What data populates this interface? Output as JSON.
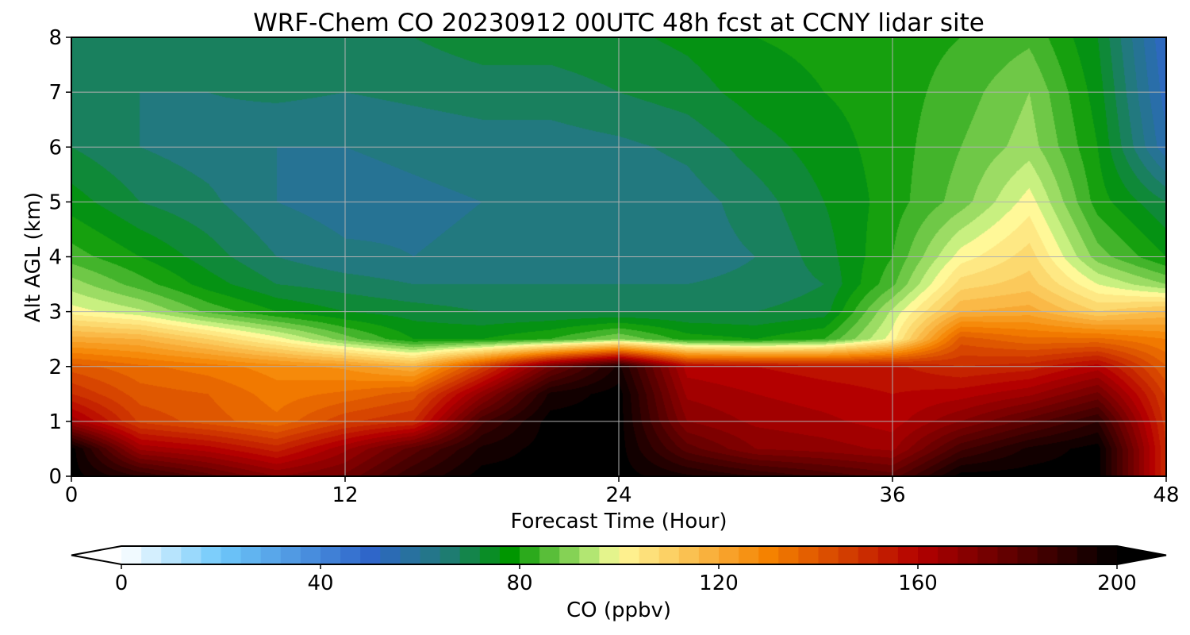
{
  "chart_data": {
    "type": "heatmap",
    "title": "WRF-Chem CO  20230912 00UTC 48h fcst at CCNY lidar site",
    "xlabel": "Forecast Time (Hour)",
    "ylabel": "Alt AGL (km)",
    "xlim": [
      0,
      48
    ],
    "ylim": [
      0,
      8
    ],
    "xticks": [
      0,
      12,
      24,
      36,
      48
    ],
    "yticks": [
      0,
      1,
      2,
      3,
      4,
      5,
      6,
      7,
      8
    ],
    "grid": true,
    "colorbar": {
      "label": "CO  (ppbv)",
      "range": [
        0,
        200
      ],
      "ticks": [
        0,
        40,
        80,
        120,
        160,
        200
      ],
      "extend": "both",
      "stops": [
        {
          "value": 0,
          "color": "#ffffff"
        },
        {
          "value": 20,
          "color": "#6ec8fa"
        },
        {
          "value": 50,
          "color": "#2f66c9"
        },
        {
          "value": 65,
          "color": "#217a7a"
        },
        {
          "value": 78,
          "color": "#009600"
        },
        {
          "value": 96,
          "color": "#c8f080"
        },
        {
          "value": 100,
          "color": "#fff898"
        },
        {
          "value": 130,
          "color": "#f58200"
        },
        {
          "value": 160,
          "color": "#b40000"
        },
        {
          "value": 200,
          "color": "#000000"
        }
      ]
    },
    "times": [
      0,
      3,
      6,
      9,
      12,
      15,
      18,
      21,
      24,
      27,
      30,
      33,
      36,
      39,
      42,
      45,
      48
    ],
    "altitudes": [
      0,
      0.5,
      1,
      1.5,
      2,
      2.5,
      3,
      3.5,
      4,
      5,
      6,
      7,
      8
    ],
    "values": [
      [
        200,
        190,
        180,
        170,
        175,
        190,
        200,
        200,
        200,
        195,
        190,
        185,
        180,
        200,
        200,
        200,
        150
      ],
      [
        200,
        165,
        160,
        152,
        165,
        180,
        195,
        200,
        200,
        180,
        170,
        168,
        165,
        185,
        195,
        200,
        150
      ],
      [
        165,
        145,
        140,
        135,
        145,
        150,
        185,
        200,
        200,
        170,
        165,
        163,
        160,
        170,
        180,
        190,
        148
      ],
      [
        150,
        140,
        138,
        132,
        135,
        140,
        168,
        195,
        200,
        165,
        162,
        160,
        158,
        160,
        165,
        175,
        145
      ],
      [
        140,
        135,
        132,
        128,
        125,
        118,
        145,
        175,
        195,
        160,
        158,
        156,
        155,
        150,
        152,
        160,
        138
      ],
      [
        120,
        118,
        110,
        100,
        88,
        78,
        78,
        82,
        90,
        80,
        78,
        82,
        100,
        140,
        135,
        135,
        130
      ],
      [
        100,
        95,
        85,
        78,
        74,
        72,
        70,
        70,
        70,
        70,
        70,
        72,
        95,
        118,
        120,
        110,
        115
      ],
      [
        92,
        84,
        76,
        70,
        68,
        66,
        66,
        66,
        66,
        66,
        67,
        70,
        85,
        108,
        112,
        98,
        90
      ],
      [
        84,
        78,
        72,
        66,
        63,
        62,
        63,
        63,
        64,
        64,
        66,
        72,
        82,
        100,
        108,
        88,
        78
      ],
      [
        76,
        70,
        67,
        62,
        60,
        61,
        62,
        62,
        63,
        64,
        68,
        74,
        80,
        88,
        100,
        80,
        70
      ],
      [
        70,
        66,
        64,
        62,
        62,
        63,
        64,
        64,
        65,
        67,
        72,
        76,
        80,
        86,
        92,
        78,
        55
      ],
      [
        68,
        66,
        66,
        67,
        66,
        67,
        68,
        68,
        70,
        72,
        76,
        78,
        80,
        84,
        90,
        76,
        52
      ],
      [
        66,
        67,
        68,
        70,
        70,
        70,
        72,
        72,
        73,
        75,
        78,
        79,
        80,
        82,
        85,
        74,
        50
      ]
    ]
  }
}
